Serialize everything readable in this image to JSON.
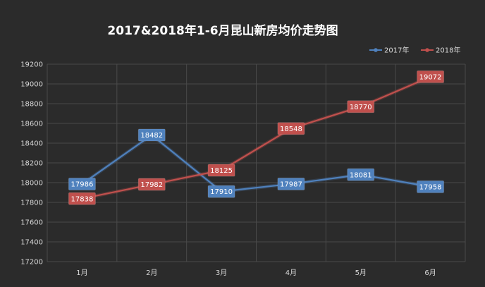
{
  "chart_data": {
    "type": "line",
    "title": "2017&2018年1-6月昆山新房均价走势图",
    "categories": [
      "1月",
      "2月",
      "3月",
      "4月",
      "5月",
      "6月"
    ],
    "series": [
      {
        "name": "2017年",
        "color": "#4f81bd",
        "values": [
          17986,
          18482,
          17910,
          17987,
          18081,
          17958
        ]
      },
      {
        "name": "2018年",
        "color": "#c0504d",
        "values": [
          17838,
          17982,
          18125,
          18548,
          18770,
          19072
        ]
      }
    ],
    "ylim": [
      17200,
      19200
    ],
    "yticks": [
      17200,
      17400,
      17600,
      17800,
      18000,
      18200,
      18400,
      18600,
      18800,
      19000,
      19200
    ],
    "grid": true,
    "legend_position": "top-right",
    "background": "#2b2b2b"
  }
}
